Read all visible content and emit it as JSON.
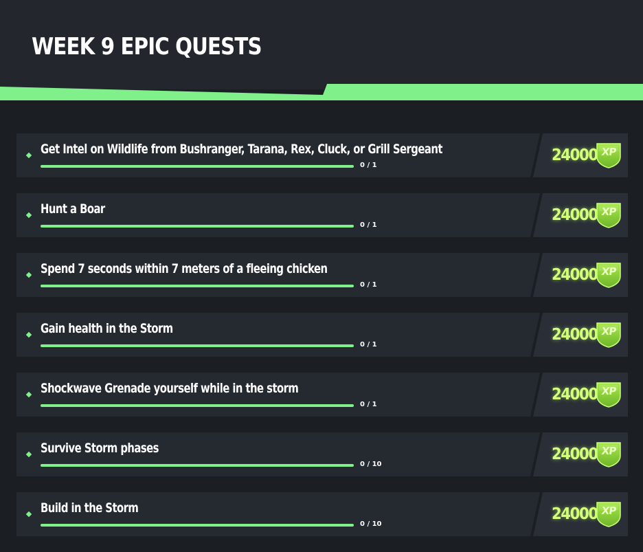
{
  "header": {
    "title": "WEEK 9 EPIC QUESTS"
  },
  "colors": {
    "accent": "#7ff08a",
    "xp_text": "#d4ff7a",
    "xp_badge": "#8fd63a"
  },
  "quests": [
    {
      "name": "Get Intel on Wildlife from Bushranger, Tarana, Rex, Cluck, or Grill Sergeant",
      "progress_text": "0 / 1",
      "current": 0,
      "target": 1,
      "bar_fill_fraction": 1,
      "xp": "24000",
      "xp_label": "XP",
      "icon": "xp-badge-icon"
    },
    {
      "name": "Hunt a Boar",
      "progress_text": "0 / 1",
      "current": 0,
      "target": 1,
      "bar_fill_fraction": 1,
      "xp": "24000",
      "xp_label": "XP",
      "icon": "xp-badge-icon"
    },
    {
      "name": "Spend 7 seconds within 7 meters of a fleeing chicken",
      "progress_text": "0 / 1",
      "current": 0,
      "target": 1,
      "bar_fill_fraction": 1,
      "xp": "24000",
      "xp_label": "XP",
      "icon": "xp-badge-icon"
    },
    {
      "name": "Gain health in the Storm",
      "progress_text": "0 / 1",
      "current": 0,
      "target": 1,
      "bar_fill_fraction": 1,
      "xp": "24000",
      "xp_label": "XP",
      "icon": "xp-badge-icon"
    },
    {
      "name": "Shockwave Grenade yourself while in the storm",
      "progress_text": "0 / 1",
      "current": 0,
      "target": 1,
      "bar_fill_fraction": 1,
      "xp": "24000",
      "xp_label": "XP",
      "icon": "xp-badge-icon"
    },
    {
      "name": "Survive Storm phases",
      "progress_text": "0 / 10",
      "current": 0,
      "target": 10,
      "bar_fill_fraction": 1,
      "xp": "24000",
      "xp_label": "XP",
      "icon": "xp-badge-icon"
    },
    {
      "name": "Build in the Storm",
      "progress_text": "0 / 10",
      "current": 0,
      "target": 10,
      "bar_fill_fraction": 1,
      "xp": "24000",
      "xp_label": "XP",
      "icon": "xp-badge-icon"
    }
  ]
}
